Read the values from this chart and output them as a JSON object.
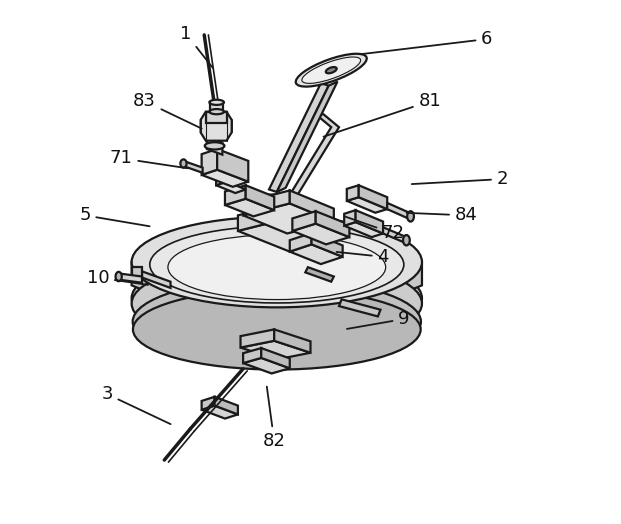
{
  "figsize": [
    6.21,
    5.24
  ],
  "dpi": 100,
  "bg_color": "#ffffff",
  "label_fontsize": 13,
  "line_color": "#1a1a1a",
  "lw": 1.6,
  "annotations": [
    [
      "1",
      [
        0.26,
        0.94
      ],
      [
        0.315,
        0.87
      ]
    ],
    [
      "83",
      [
        0.18,
        0.81
      ],
      [
        0.295,
        0.755
      ]
    ],
    [
      "71",
      [
        0.135,
        0.7
      ],
      [
        0.268,
        0.68
      ]
    ],
    [
      "5",
      [
        0.065,
        0.59
      ],
      [
        0.195,
        0.568
      ]
    ],
    [
      "10",
      [
        0.09,
        0.47
      ],
      [
        0.192,
        0.455
      ]
    ],
    [
      "3",
      [
        0.108,
        0.245
      ],
      [
        0.235,
        0.185
      ]
    ],
    [
      "82",
      [
        0.43,
        0.155
      ],
      [
        0.415,
        0.265
      ]
    ],
    [
      "9",
      [
        0.68,
        0.39
      ],
      [
        0.565,
        0.37
      ]
    ],
    [
      "4",
      [
        0.64,
        0.51
      ],
      [
        0.545,
        0.52
      ]
    ],
    [
      "72",
      [
        0.66,
        0.555
      ],
      [
        0.56,
        0.59
      ]
    ],
    [
      "84",
      [
        0.8,
        0.59
      ],
      [
        0.68,
        0.595
      ]
    ],
    [
      "2",
      [
        0.87,
        0.66
      ],
      [
        0.69,
        0.65
      ]
    ],
    [
      "81",
      [
        0.73,
        0.81
      ],
      [
        0.52,
        0.74
      ]
    ],
    [
      "6",
      [
        0.84,
        0.93
      ],
      [
        0.59,
        0.9
      ]
    ]
  ]
}
